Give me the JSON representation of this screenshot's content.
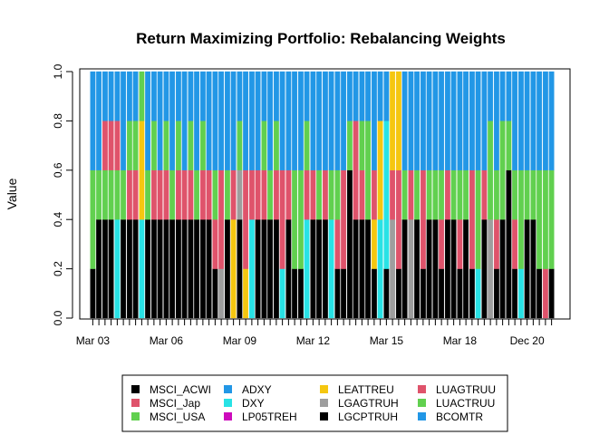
{
  "chart_data": {
    "type": "bar",
    "stacked": true,
    "title": "Return Maximizing Portfolio: Rebalancing Weights",
    "xlabel": "",
    "ylabel": "Value",
    "ylim": [
      0,
      1
    ],
    "yticks": [
      0.0,
      0.2,
      0.4,
      0.6,
      0.8,
      1.0
    ],
    "ytick_labels": [
      "0.0",
      "0.2",
      "0.4",
      "0.6",
      "0.8",
      "1.0"
    ],
    "xtick_labels": [
      {
        "label": "Mar 03",
        "index": 0
      },
      {
        "label": "Mar 06",
        "index": 12
      },
      {
        "label": "Mar 09",
        "index": 24
      },
      {
        "label": "Mar 12",
        "index": 36
      },
      {
        "label": "Mar 15",
        "index": 48
      },
      {
        "label": "Mar 18",
        "index": 60
      },
      {
        "label": "Dec 20",
        "index": 71
      }
    ],
    "n_periods": 76,
    "legend_placement": "bottom",
    "legend": [
      {
        "name": "MSCI_ACWI",
        "color": "#000000"
      },
      {
        "name": "MSCI_Jap",
        "color": "#DF536B"
      },
      {
        "name": "MSCI_USA",
        "color": "#61D04F"
      },
      {
        "name": "ADXY",
        "color": "#2297E6"
      },
      {
        "name": "DXY",
        "color": "#28E2E5"
      },
      {
        "name": "LP05TREH",
        "color": "#CD0BBC"
      },
      {
        "name": "LEATTREU",
        "color": "#F5C710"
      },
      {
        "name": "LGAGTRUH",
        "color": "#9E9E9E"
      },
      {
        "name": "LGCPTRUH",
        "color": "#000000"
      },
      {
        "name": "LUAGTRUU",
        "color": "#DF536B"
      },
      {
        "name": "LUACTRUU",
        "color": "#61D04F"
      },
      {
        "name": "BCOMTR",
        "color": "#2297E6"
      }
    ],
    "bars": [
      [
        [
          0,
          0.2
        ],
        [
          10,
          0.4
        ],
        [
          3,
          0.4
        ]
      ],
      [
        [
          0,
          0.4
        ],
        [
          10,
          0.2
        ],
        [
          3,
          0.4
        ]
      ],
      [
        [
          0,
          0.4
        ],
        [
          2,
          0.2
        ],
        [
          1,
          0.2
        ],
        [
          3,
          0.2
        ]
      ],
      [
        [
          0,
          0.4
        ],
        [
          2,
          0.2
        ],
        [
          1,
          0.2
        ],
        [
          3,
          0.2
        ]
      ],
      [
        [
          4,
          0.4
        ],
        [
          2,
          0.2
        ],
        [
          1,
          0.2
        ],
        [
          11,
          0.2
        ]
      ],
      [
        [
          0,
          0.4
        ],
        [
          2,
          0.2
        ],
        [
          3,
          0.4
        ]
      ],
      [
        [
          0,
          0.4
        ],
        [
          9,
          0.2
        ],
        [
          2,
          0.2
        ],
        [
          3,
          0.2
        ]
      ],
      [
        [
          0,
          0.4
        ],
        [
          1,
          0.2
        ],
        [
          2,
          0.2
        ],
        [
          3,
          0.2
        ]
      ],
      [
        [
          4,
          0.4
        ],
        [
          6,
          0.4
        ],
        [
          2,
          0.2
        ]
      ],
      [
        [
          0,
          0.4
        ],
        [
          10,
          0.2
        ],
        [
          3,
          0.4
        ]
      ],
      [
        [
          0,
          0.4
        ],
        [
          1,
          0.2
        ],
        [
          2,
          0.2
        ],
        [
          3,
          0.2
        ]
      ],
      [
        [
          0,
          0.4
        ],
        [
          9,
          0.2
        ],
        [
          3,
          0.4
        ]
      ],
      [
        [
          0,
          0.4
        ],
        [
          1,
          0.2
        ],
        [
          2,
          0.2
        ],
        [
          3,
          0.2
        ]
      ],
      [
        [
          0,
          0.4
        ],
        [
          2,
          0.2
        ],
        [
          3,
          0.4
        ]
      ],
      [
        [
          0,
          0.4
        ],
        [
          9,
          0.2
        ],
        [
          2,
          0.2
        ],
        [
          3,
          0.2
        ]
      ],
      [
        [
          0,
          0.4
        ],
        [
          1,
          0.2
        ],
        [
          3,
          0.4
        ]
      ],
      [
        [
          0,
          0.4
        ],
        [
          1,
          0.2
        ],
        [
          2,
          0.2
        ],
        [
          3,
          0.2
        ]
      ],
      [
        [
          0,
          0.4
        ],
        [
          2,
          0.2
        ],
        [
          3,
          0.4
        ]
      ],
      [
        [
          0,
          0.4
        ],
        [
          9,
          0.2
        ],
        [
          2,
          0.2
        ],
        [
          3,
          0.2
        ]
      ],
      [
        [
          0,
          0.4
        ],
        [
          1,
          0.2
        ],
        [
          3,
          0.4
        ]
      ],
      [
        [
          0,
          0.2
        ],
        [
          9,
          0.2
        ],
        [
          2,
          0.2
        ],
        [
          3,
          0.4
        ]
      ],
      [
        [
          7,
          0.2
        ],
        [
          1,
          0.4
        ],
        [
          3,
          0.4
        ]
      ],
      [
        [
          0,
          0.4
        ],
        [
          2,
          0.2
        ],
        [
          3,
          0.4
        ]
      ],
      [
        [
          6,
          0.4
        ],
        [
          9,
          0.2
        ],
        [
          3,
          0.4
        ]
      ],
      [
        [
          0,
          0.4
        ],
        [
          7,
          0.2
        ],
        [
          10,
          0.2
        ],
        [
          3,
          0.2
        ]
      ],
      [
        [
          6,
          0.2
        ],
        [
          9,
          0.4
        ],
        [
          3,
          0.4
        ]
      ],
      [
        [
          4,
          0.4
        ],
        [
          1,
          0.2
        ],
        [
          3,
          0.4
        ]
      ],
      [
        [
          0,
          0.4
        ],
        [
          1,
          0.2
        ],
        [
          3,
          0.4
        ]
      ],
      [
        [
          0,
          0.4
        ],
        [
          1,
          0.2
        ],
        [
          2,
          0.2
        ],
        [
          3,
          0.2
        ]
      ],
      [
        [
          0,
          0.4
        ],
        [
          2,
          0.2
        ],
        [
          3,
          0.4
        ]
      ],
      [
        [
          0,
          0.4
        ],
        [
          9,
          0.2
        ],
        [
          2,
          0.2
        ],
        [
          3,
          0.2
        ]
      ],
      [
        [
          4,
          0.2
        ],
        [
          1,
          0.4
        ],
        [
          3,
          0.4
        ]
      ],
      [
        [
          0,
          0.4
        ],
        [
          1,
          0.2
        ],
        [
          3,
          0.4
        ]
      ],
      [
        [
          0,
          0.2
        ],
        [
          2,
          0.4
        ],
        [
          3,
          0.4
        ]
      ],
      [
        [
          0,
          0.2
        ],
        [
          2,
          0.4
        ],
        [
          3,
          0.4
        ]
      ],
      [
        [
          4,
          0.4
        ],
        [
          1,
          0.2
        ],
        [
          10,
          0.2
        ],
        [
          3,
          0.2
        ]
      ],
      [
        [
          0,
          0.4
        ],
        [
          1,
          0.2
        ],
        [
          3,
          0.4
        ]
      ],
      [
        [
          0,
          0.4
        ],
        [
          2,
          0.2
        ],
        [
          3,
          0.4
        ]
      ],
      [
        [
          0,
          0.4
        ],
        [
          1,
          0.2
        ],
        [
          3,
          0.4
        ]
      ],
      [
        [
          4,
          0.4
        ],
        [
          2,
          0.2
        ],
        [
          3,
          0.4
        ]
      ],
      [
        [
          0,
          0.2
        ],
        [
          1,
          0.2
        ],
        [
          2,
          0.2
        ],
        [
          3,
          0.4
        ]
      ],
      [
        [
          0,
          0.2
        ],
        [
          9,
          0.4
        ],
        [
          3,
          0.4
        ]
      ],
      [
        [
          0,
          0.6
        ],
        [
          2,
          0.2
        ],
        [
          3,
          0.2
        ]
      ],
      [
        [
          0,
          0.4
        ],
        [
          1,
          0.4
        ],
        [
          3,
          0.2
        ]
      ],
      [
        [
          0,
          0.4
        ],
        [
          1,
          0.2
        ],
        [
          2,
          0.2
        ],
        [
          3,
          0.2
        ]
      ],
      [
        [
          0,
          0.4
        ],
        [
          2,
          0.4
        ],
        [
          3,
          0.2
        ]
      ],
      [
        [
          0,
          0.2
        ],
        [
          6,
          0.2
        ],
        [
          9,
          0.2
        ],
        [
          3,
          0.4
        ]
      ],
      [
        [
          4,
          0.4
        ],
        [
          6,
          0.4
        ],
        [
          11,
          0.2
        ]
      ],
      [
        [
          0,
          0.2
        ],
        [
          4,
          0.6
        ],
        [
          3,
          0.2
        ]
      ],
      [
        [
          7,
          0.4
        ],
        [
          1,
          0.2
        ],
        [
          6,
          0.4
        ]
      ],
      [
        [
          0,
          0.2
        ],
        [
          1,
          0.4
        ],
        [
          6,
          0.4
        ]
      ],
      [
        [
          0,
          0.4
        ],
        [
          2,
          0.2
        ],
        [
          3,
          0.4
        ]
      ],
      [
        [
          7,
          0.4
        ],
        [
          1,
          0.2
        ],
        [
          3,
          0.4
        ]
      ],
      [
        [
          0,
          0.4
        ],
        [
          2,
          0.2
        ],
        [
          3,
          0.4
        ]
      ],
      [
        [
          0,
          0.2
        ],
        [
          1,
          0.4
        ],
        [
          3,
          0.4
        ]
      ],
      [
        [
          0,
          0.4
        ],
        [
          2,
          0.2
        ],
        [
          3,
          0.4
        ]
      ],
      [
        [
          0,
          0.4
        ],
        [
          2,
          0.2
        ],
        [
          3,
          0.4
        ]
      ],
      [
        [
          0,
          0.2
        ],
        [
          9,
          0.2
        ],
        [
          2,
          0.2
        ],
        [
          3,
          0.4
        ]
      ],
      [
        [
          0,
          0.4
        ],
        [
          1,
          0.2
        ],
        [
          3,
          0.4
        ]
      ],
      [
        [
          0,
          0.4
        ],
        [
          2,
          0.2
        ],
        [
          3,
          0.4
        ]
      ],
      [
        [
          0,
          0.2
        ],
        [
          1,
          0.2
        ],
        [
          2,
          0.2
        ],
        [
          3,
          0.4
        ]
      ],
      [
        [
          0,
          0.4
        ],
        [
          2,
          0.2
        ],
        [
          3,
          0.4
        ]
      ],
      [
        [
          0,
          0.2
        ],
        [
          1,
          0.4
        ],
        [
          3,
          0.4
        ]
      ],
      [
        [
          4,
          0.2
        ],
        [
          2,
          0.4
        ],
        [
          3,
          0.4
        ]
      ],
      [
        [
          0,
          0.4
        ],
        [
          1,
          0.2
        ],
        [
          3,
          0.4
        ]
      ],
      [
        [
          7,
          0.4
        ],
        [
          2,
          0.4
        ],
        [
          3,
          0.2
        ]
      ],
      [
        [
          0,
          0.2
        ],
        [
          1,
          0.2
        ],
        [
          2,
          0.2
        ],
        [
          3,
          0.4
        ]
      ],
      [
        [
          0,
          0.4
        ],
        [
          2,
          0.4
        ],
        [
          3,
          0.2
        ]
      ],
      [
        [
          0,
          0.6
        ],
        [
          2,
          0.2
        ],
        [
          3,
          0.2
        ]
      ],
      [
        [
          0,
          0.2
        ],
        [
          1,
          0.2
        ],
        [
          2,
          0.2
        ],
        [
          3,
          0.4
        ]
      ],
      [
        [
          4,
          0.2
        ],
        [
          2,
          0.4
        ],
        [
          3,
          0.4
        ]
      ],
      [
        [
          0,
          0.4
        ],
        [
          2,
          0.2
        ],
        [
          3,
          0.4
        ]
      ],
      [
        [
          0,
          0.4
        ],
        [
          2,
          0.2
        ],
        [
          3,
          0.4
        ]
      ],
      [
        [
          0,
          0.2
        ],
        [
          2,
          0.4
        ],
        [
          3,
          0.4
        ]
      ],
      [
        [
          9,
          0.2
        ],
        [
          2,
          0.4
        ],
        [
          3,
          0.4
        ]
      ],
      [
        [
          0,
          0.2
        ],
        [
          2,
          0.4
        ],
        [
          3,
          0.4
        ]
      ]
    ]
  }
}
